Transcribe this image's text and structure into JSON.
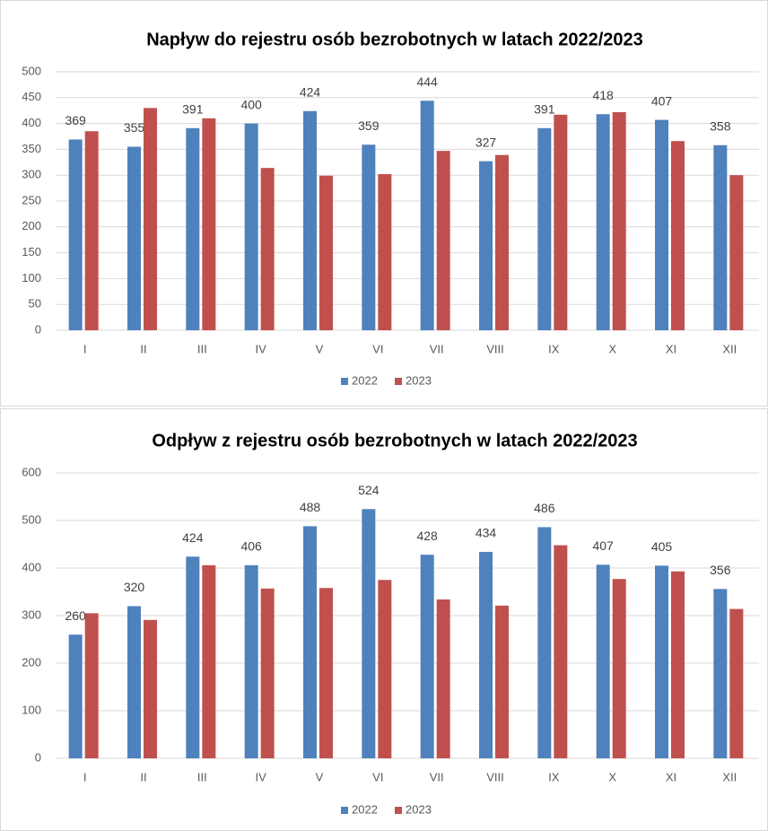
{
  "chart_data": [
    {
      "type": "bar",
      "title": "Napływ do rejestru osób bezrobotnych w latach 2022/2023",
      "categories": [
        "I",
        "II",
        "III",
        "IV",
        "V",
        "VI",
        "VII",
        "VIII",
        "IX",
        "X",
        "XI",
        "XII"
      ],
      "series": [
        {
          "name": "2022",
          "color": "#4f81bd",
          "data_labels": true,
          "values": [
            369,
            355,
            391,
            400,
            424,
            359,
            444,
            327,
            391,
            418,
            407,
            358
          ]
        },
        {
          "name": "2023",
          "color": "#c0504d",
          "data_labels": false,
          "values": [
            385,
            430,
            410,
            314,
            299,
            302,
            347,
            339,
            417,
            422,
            366,
            300
          ]
        }
      ],
      "ylim": [
        0,
        500
      ],
      "yticks": [
        0,
        50,
        100,
        150,
        200,
        250,
        300,
        350,
        400,
        450,
        500
      ],
      "grid": true,
      "legend": "bottom"
    },
    {
      "type": "bar",
      "title": "Odpływ z rejestru osób bezrobotnych w latach 2022/2023",
      "categories": [
        "I",
        "II",
        "III",
        "IV",
        "V",
        "VI",
        "VII",
        "VIII",
        "IX",
        "X",
        "XI",
        "XII"
      ],
      "series": [
        {
          "name": "2022",
          "color": "#4f81bd",
          "data_labels": true,
          "values": [
            260,
            320,
            424,
            406,
            488,
            524,
            428,
            434,
            486,
            407,
            405,
            356
          ]
        },
        {
          "name": "2023",
          "color": "#c0504d",
          "data_labels": false,
          "values": [
            305,
            291,
            406,
            357,
            358,
            375,
            334,
            321,
            448,
            377,
            393,
            314
          ]
        }
      ],
      "ylim": [
        0,
        600
      ],
      "yticks": [
        0,
        100,
        200,
        300,
        400,
        500,
        600
      ],
      "grid": true,
      "legend": "bottom"
    }
  ]
}
